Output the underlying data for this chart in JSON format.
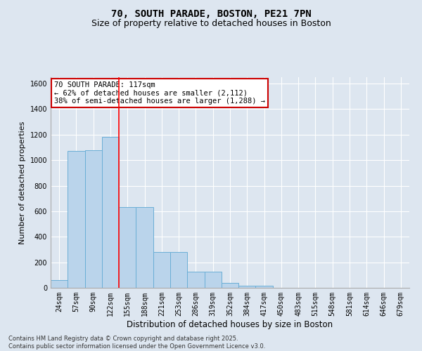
{
  "title_line1": "70, SOUTH PARADE, BOSTON, PE21 7PN",
  "title_line2": "Size of property relative to detached houses in Boston",
  "xlabel": "Distribution of detached houses by size in Boston",
  "ylabel": "Number of detached properties",
  "categories": [
    "24sqm",
    "57sqm",
    "90sqm",
    "122sqm",
    "155sqm",
    "188sqm",
    "221sqm",
    "253sqm",
    "286sqm",
    "319sqm",
    "352sqm",
    "384sqm",
    "417sqm",
    "450sqm",
    "483sqm",
    "515sqm",
    "548sqm",
    "581sqm",
    "614sqm",
    "646sqm",
    "679sqm"
  ],
  "values": [
    60,
    1075,
    1080,
    1185,
    635,
    635,
    280,
    280,
    125,
    125,
    40,
    15,
    15,
    0,
    0,
    0,
    0,
    0,
    0,
    0,
    0
  ],
  "bar_color": "#bad4eb",
  "bar_edge_color": "#6aaed6",
  "red_line_x": 3.5,
  "ylim": [
    0,
    1650
  ],
  "yticks": [
    0,
    200,
    400,
    600,
    800,
    1000,
    1200,
    1400,
    1600
  ],
  "annotation_text": "70 SOUTH PARADE: 117sqm\n← 62% of detached houses are smaller (2,112)\n38% of semi-detached houses are larger (1,288) →",
  "annotation_box_color": "#ffffff",
  "annotation_box_edge_color": "#cc0000",
  "footer_line1": "Contains HM Land Registry data © Crown copyright and database right 2025.",
  "footer_line2": "Contains public sector information licensed under the Open Government Licence v3.0.",
  "background_color": "#dde6f0",
  "plot_background_color": "#dde6f0",
  "grid_color": "#ffffff",
  "title_fontsize": 10,
  "subtitle_fontsize": 9,
  "tick_fontsize": 7,
  "ylabel_fontsize": 8,
  "xlabel_fontsize": 8.5,
  "annotation_fontsize": 7.5,
  "footer_fontsize": 6
}
